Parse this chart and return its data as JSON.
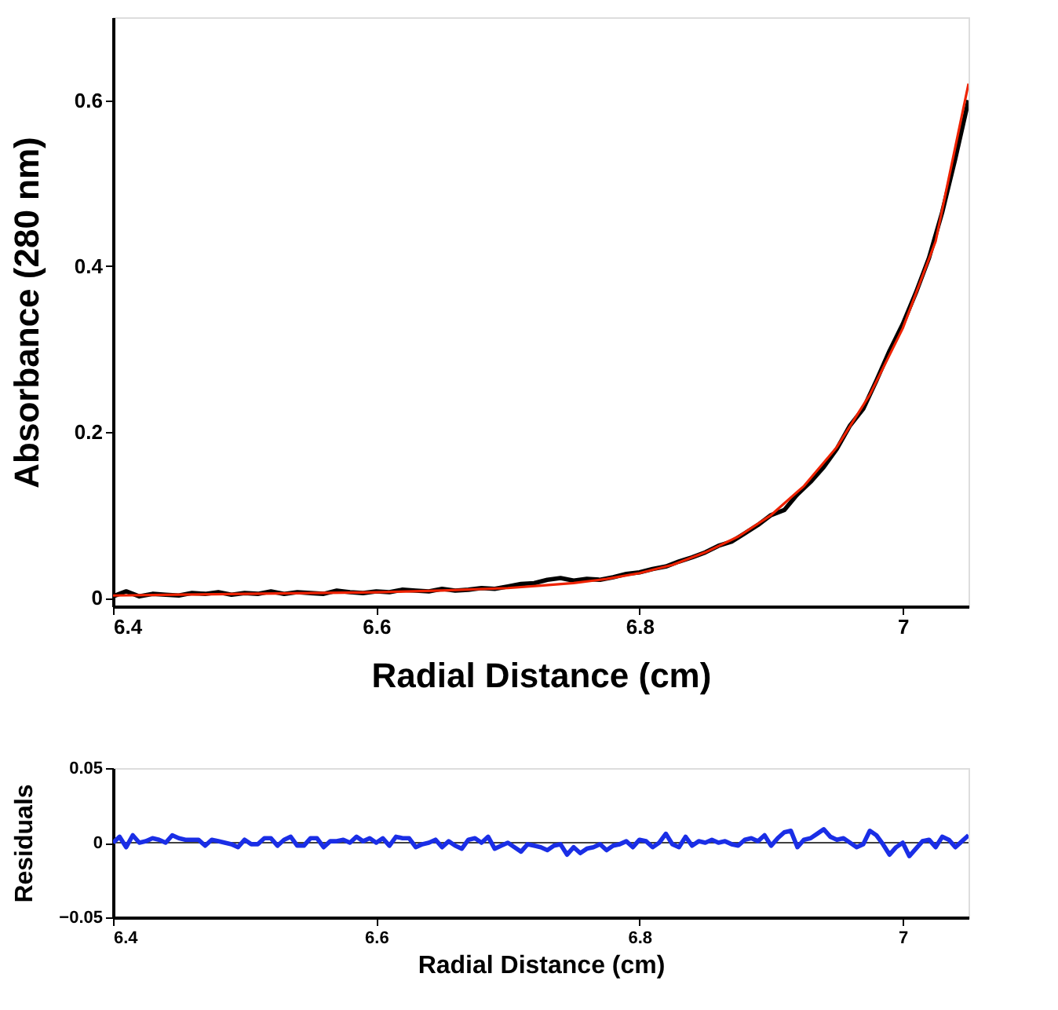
{
  "chart_data": [
    {
      "type": "line",
      "xlabel": "Radial Distance  (cm)",
      "ylabel": "Absorbance   (280 nm)",
      "xlim": [
        6.4,
        7.05
      ],
      "ylim": [
        -0.01,
        0.7
      ],
      "xticks": [
        6.4,
        6.6,
        6.8,
        7
      ],
      "yticks": [
        0,
        0.2,
        0.4,
        0.6
      ],
      "grid": false,
      "legend": false,
      "line_style": "solid",
      "series": [
        {
          "color": "#000000",
          "x": [
            6.4,
            6.41,
            6.42,
            6.43,
            6.44,
            6.45,
            6.46,
            6.47,
            6.48,
            6.49,
            6.5,
            6.51,
            6.52,
            6.53,
            6.54,
            6.55,
            6.56,
            6.57,
            6.58,
            6.59,
            6.6,
            6.61,
            6.62,
            6.63,
            6.64,
            6.65,
            6.66,
            6.67,
            6.68,
            6.69,
            6.7,
            6.71,
            6.72,
            6.73,
            6.74,
            6.75,
            6.76,
            6.77,
            6.78,
            6.79,
            6.8,
            6.81,
            6.82,
            6.83,
            6.84,
            6.85,
            6.86,
            6.87,
            6.88,
            6.89,
            6.9,
            6.91,
            6.92,
            6.93,
            6.94,
            6.95,
            6.96,
            6.97,
            6.98,
            6.99,
            7.0,
            7.01,
            7.02,
            7.03,
            7.04,
            7.05
          ],
          "values": [
            0.002,
            0.008,
            0.002,
            0.005,
            0.004,
            0.003,
            0.006,
            0.005,
            0.007,
            0.004,
            0.006,
            0.005,
            0.008,
            0.005,
            0.007,
            0.006,
            0.005,
            0.009,
            0.007,
            0.006,
            0.008,
            0.007,
            0.01,
            0.009,
            0.008,
            0.011,
            0.009,
            0.01,
            0.012,
            0.011,
            0.014,
            0.017,
            0.018,
            0.022,
            0.024,
            0.021,
            0.023,
            0.022,
            0.025,
            0.029,
            0.031,
            0.035,
            0.038,
            0.044,
            0.049,
            0.055,
            0.063,
            0.068,
            0.078,
            0.088,
            0.1,
            0.106,
            0.125,
            0.14,
            0.158,
            0.18,
            0.208,
            0.228,
            0.262,
            0.298,
            0.33,
            0.368,
            0.41,
            0.465,
            0.53,
            0.6
          ]
        },
        {
          "color": "#ee2200",
          "x": [
            6.4,
            6.45,
            6.5,
            6.55,
            6.6,
            6.65,
            6.7,
            6.725,
            6.75,
            6.775,
            6.8,
            6.825,
            6.85,
            6.875,
            6.9,
            6.925,
            6.95,
            6.975,
            7.0,
            7.025,
            7.05
          ],
          "values": [
            0.003,
            0.004,
            0.005,
            0.006,
            0.007,
            0.009,
            0.012,
            0.015,
            0.018,
            0.023,
            0.03,
            0.04,
            0.055,
            0.074,
            0.1,
            0.135,
            0.182,
            0.245,
            0.325,
            0.43,
            0.62
          ]
        }
      ]
    },
    {
      "type": "line",
      "xlabel": "Radial Distance   (cm)",
      "ylabel": "Residuals",
      "xlim": [
        6.4,
        7.05
      ],
      "ylim": [
        -0.05,
        0.05
      ],
      "xticks": [
        6.4,
        6.6,
        6.8,
        7
      ],
      "yticks": [
        -0.05,
        0,
        0.05
      ],
      "grid": false,
      "legend": false,
      "line_style": "solid",
      "ref_lines": [
        {
          "axis": "y",
          "value": 0,
          "color": "#000000"
        }
      ],
      "series": [
        {
          "color": "#1a2ee6",
          "values": [
            0,
            0.004,
            -0.003,
            0.005,
            0,
            0.001,
            0.003,
            0.002,
            0,
            0.005,
            0.003,
            0.002,
            0.002,
            0.002,
            -0.002,
            0.002,
            0.001,
            0,
            -0.001,
            -0.003,
            0.002,
            -0.001,
            -0.001,
            0.003,
            0.003,
            -0.002,
            0.002,
            0.004,
            -0.002,
            -0.002,
            0.003,
            0.003,
            -0.003,
            0.001,
            0.001,
            0.002,
            0,
            0.004,
            0.001,
            0.003,
            0,
            0.003,
            -0.002,
            0.004,
            0.003,
            0.003,
            -0.003,
            -0.001,
            0,
            0.002,
            -0.003,
            0.001,
            -0.002,
            -0.004,
            0.002,
            0.003,
            0,
            0.004,
            -0.004,
            -0.002,
            0,
            -0.003,
            -0.006,
            -0.001,
            -0.002,
            -0.003,
            -0.005,
            -0.002,
            -0.001,
            -0.008,
            -0.003,
            -0.007,
            -0.004,
            -0.003,
            -0.001,
            -0.005,
            -0.002,
            -0.001,
            0.001,
            -0.003,
            0.002,
            0.001,
            -0.003,
            0,
            0.006,
            -0.001,
            -0.003,
            0.004,
            -0.002,
            0.001,
            0,
            0.002,
            0,
            0.001,
            -0.001,
            -0.002,
            0.002,
            0.003,
            0.001,
            0.005,
            -0.002,
            0.003,
            0.007,
            0.008,
            -0.003,
            0.002,
            0.003,
            0.006,
            0.009,
            0.004,
            0.002,
            0.003,
            0,
            -0.003,
            -0.001,
            0.008,
            0.005,
            -0.001,
            -0.008,
            -0.003,
            0,
            -0.009,
            -0.004,
            0.001,
            0.002,
            -0.003,
            0.004,
            0.002,
            -0.003,
            0.001,
            0.005
          ],
          "x": [
            6.4,
            6.405,
            6.41,
            6.415,
            6.42,
            6.425,
            6.43,
            6.435,
            6.44,
            6.445,
            6.45,
            6.455,
            6.46,
            6.465,
            6.47,
            6.475,
            6.48,
            6.485,
            6.49,
            6.495,
            6.5,
            6.505,
            6.51,
            6.515,
            6.52,
            6.525,
            6.53,
            6.535,
            6.54,
            6.545,
            6.55,
            6.555,
            6.56,
            6.565,
            6.57,
            6.575,
            6.58,
            6.585,
            6.59,
            6.595,
            6.6,
            6.605,
            6.61,
            6.615,
            6.62,
            6.625,
            6.63,
            6.635,
            6.64,
            6.645,
            6.65,
            6.655,
            6.66,
            6.665,
            6.67,
            6.675,
            6.68,
            6.685,
            6.69,
            6.695,
            6.7,
            6.705,
            6.71,
            6.715,
            6.72,
            6.725,
            6.73,
            6.735,
            6.74,
            6.745,
            6.75,
            6.755,
            6.76,
            6.765,
            6.77,
            6.775,
            6.78,
            6.785,
            6.79,
            6.795,
            6.8,
            6.805,
            6.81,
            6.815,
            6.82,
            6.825,
            6.83,
            6.835,
            6.84,
            6.845,
            6.85,
            6.855,
            6.86,
            6.865,
            6.87,
            6.875,
            6.88,
            6.885,
            6.89,
            6.895,
            6.9,
            6.905,
            6.91,
            6.915,
            6.92,
            6.925,
            6.93,
            6.935,
            6.94,
            6.945,
            6.95,
            6.955,
            6.96,
            6.965,
            6.97,
            6.975,
            6.98,
            6.985,
            6.99,
            6.995,
            7.0,
            7.005,
            7.01,
            7.015,
            7.02,
            7.025,
            7.03,
            7.035,
            7.04,
            7.045,
            7.05
          ]
        }
      ]
    }
  ]
}
